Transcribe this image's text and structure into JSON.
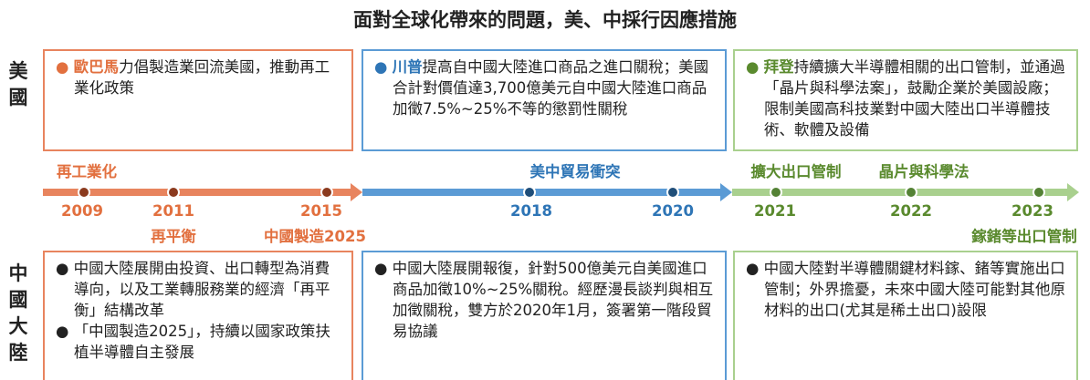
{
  "title": "面對全球化帶來的問題，美、中採行因應措施",
  "us": {
    "label": "美國",
    "boxes": [
      {
        "name": "歐巴馬",
        "text": "力倡製造業回流美國，推動再工業化政策"
      },
      {
        "name": "川普",
        "text": "提高自中國大陸進口商品之進口關稅；美國合計對價值達3,700億美元自中國大陸進口商品加徵7.5%~25%不等的懲罰性關稅"
      },
      {
        "name": "拜登",
        "text": "持續擴大半導體相關的出口管制，並通過「晶片與科學法案」，鼓勵企業於美國設廠；限制美國高科技業對中國大陸出口半導體技術、軟體及設備"
      }
    ]
  },
  "timeline": {
    "phases": [
      "再工業化",
      "美中貿易衝突",
      "擴大出口管制",
      "晶片與科學法"
    ],
    "years": [
      "2009",
      "2011",
      "2015",
      "2018",
      "2020",
      "2021",
      "2022",
      "2023"
    ],
    "events": [
      "再平衡",
      "中國製造2025",
      "鎵鍺等出口管制"
    ]
  },
  "china": {
    "label": "中國大陸",
    "boxes": [
      [
        "中國大陸展開由投資、出口轉型為消費導向，以及工業轉服務業的經濟「再平衡」結構改革",
        "「中國製造2025」，持續以國家政策扶植半導體自主發展"
      ],
      [
        "中國大陸展開報復，針對500億美元自美國進口商品加徵10%~25%關稅。經歷漫長談判與相互加徵關稅，雙方於2020年1月，簽署第一階段貿易協議"
      ],
      [
        "中國大陸對半導體關鍵材料鎵、鍺等實施出口管制；外界擔憂，未來中國大陸可能對其他原材料的出口(尤其是稀土出口)設限"
      ]
    ]
  }
}
